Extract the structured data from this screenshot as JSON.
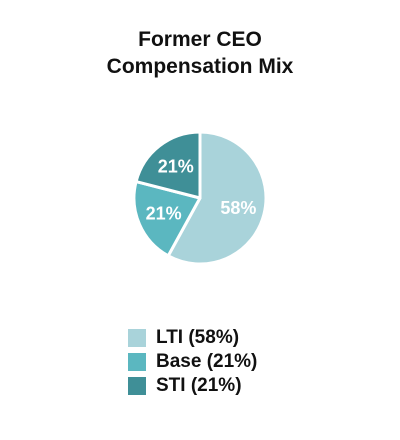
{
  "title_lines": [
    "Former CEO",
    "Compensation Mix"
  ],
  "chart_data": {
    "type": "pie",
    "title": "Former CEO Compensation Mix",
    "slices": [
      {
        "label": "LTI",
        "legend": "LTI (58%)",
        "value": 58,
        "display": "58%",
        "color": "#a9d3da"
      },
      {
        "label": "Base",
        "legend": "Base (21%)",
        "value": 21,
        "display": "21%",
        "color": "#5bb7c0"
      },
      {
        "label": "STI",
        "legend": "STI (21%)",
        "value": 21,
        "display": "21%",
        "color": "#3f8f97"
      }
    ],
    "legend_position": "bottom",
    "start_angle_deg": 0,
    "direction": "clockwise"
  }
}
